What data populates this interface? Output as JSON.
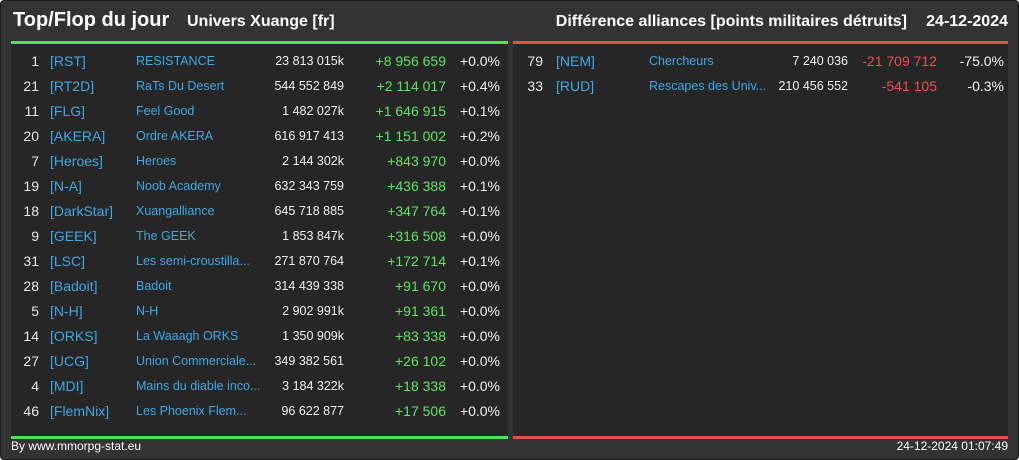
{
  "header": {
    "title": "Top/Flop du jour",
    "univers": "Univers Xuange [fr]",
    "diff": "Différence alliances [points militaires détruits]",
    "date": "24-12-2024"
  },
  "top": [
    {
      "rank": "1",
      "tag": "[RST]",
      "name": "RESISTANCE",
      "points": "23 813 015k",
      "diff": "+8 956 659",
      "pct": "+0.0%"
    },
    {
      "rank": "21",
      "tag": "[RT2D]",
      "name": "RaTs Du Desert",
      "points": "544 552 849",
      "diff": "+2 114 017",
      "pct": "+0.4%"
    },
    {
      "rank": "11",
      "tag": "[FLG]",
      "name": "Feel Good",
      "points": "1 482 027k",
      "diff": "+1 646 915",
      "pct": "+0.1%"
    },
    {
      "rank": "20",
      "tag": "[AKERA]",
      "name": "Ordre AKERA",
      "points": "616 917 413",
      "diff": "+1 151 002",
      "pct": "+0.2%"
    },
    {
      "rank": "7",
      "tag": "[Heroes]",
      "name": "Heroes",
      "points": "2 144 302k",
      "diff": "+843 970",
      "pct": "+0.0%"
    },
    {
      "rank": "19",
      "tag": "[N-A]",
      "name": "Noob Academy",
      "points": "632 343 759",
      "diff": "+436 388",
      "pct": "+0.1%"
    },
    {
      "rank": "18",
      "tag": "[DarkStar]",
      "name": "Xuangalliance",
      "points": "645 718 885",
      "diff": "+347 764",
      "pct": "+0.1%"
    },
    {
      "rank": "9",
      "tag": "[GEEK]",
      "name": "The GEEK",
      "points": "1 853 847k",
      "diff": "+316 508",
      "pct": "+0.0%"
    },
    {
      "rank": "31",
      "tag": "[LSC]",
      "name": "Les semi-croustilla...",
      "points": "271 870 764",
      "diff": "+172 714",
      "pct": "+0.1%"
    },
    {
      "rank": "28",
      "tag": "[Badoit]",
      "name": "Badoit",
      "points": "314 439 338",
      "diff": "+91 670",
      "pct": "+0.0%"
    },
    {
      "rank": "5",
      "tag": "[N-H]",
      "name": "N-H",
      "points": "2 902 991k",
      "diff": "+91 361",
      "pct": "+0.0%"
    },
    {
      "rank": "14",
      "tag": "[ORKS]",
      "name": "La Waaagh ORKS",
      "points": "1 350 909k",
      "diff": "+83 338",
      "pct": "+0.0%"
    },
    {
      "rank": "27",
      "tag": "[UCG]",
      "name": "Union Commerciale...",
      "points": "349 382 561",
      "diff": "+26 102",
      "pct": "+0.0%"
    },
    {
      "rank": "4",
      "tag": "[MDI]",
      "name": "Mains du diable inco...",
      "points": "3 184 322k",
      "diff": "+18 338",
      "pct": "+0.0%"
    },
    {
      "rank": "46",
      "tag": "[FlemNix]",
      "name": "Les Phoenix Flem...",
      "points": "96 622 877",
      "diff": "+17 506",
      "pct": "+0.0%"
    }
  ],
  "flop": [
    {
      "rank": "79",
      "tag": "[NEM]",
      "name": "Chercheurs",
      "points": "7 240 036",
      "diff": "-21 709 712",
      "pct": "-75.0%"
    },
    {
      "rank": "33",
      "tag": "[RUD]",
      "name": "Rescapes des Univ...",
      "points": "210 456 552",
      "diff": "-541 105",
      "pct": "-0.3%"
    }
  ],
  "footer": {
    "by": "By www.mmorpg-stat.eu",
    "timestamp": "24-12-2024 01:07:49"
  },
  "colors": {
    "positive": "#5ee563",
    "negative": "#ee4f4f",
    "link": "#3fa8e6",
    "background": "#333333",
    "panel": "#262626"
  }
}
